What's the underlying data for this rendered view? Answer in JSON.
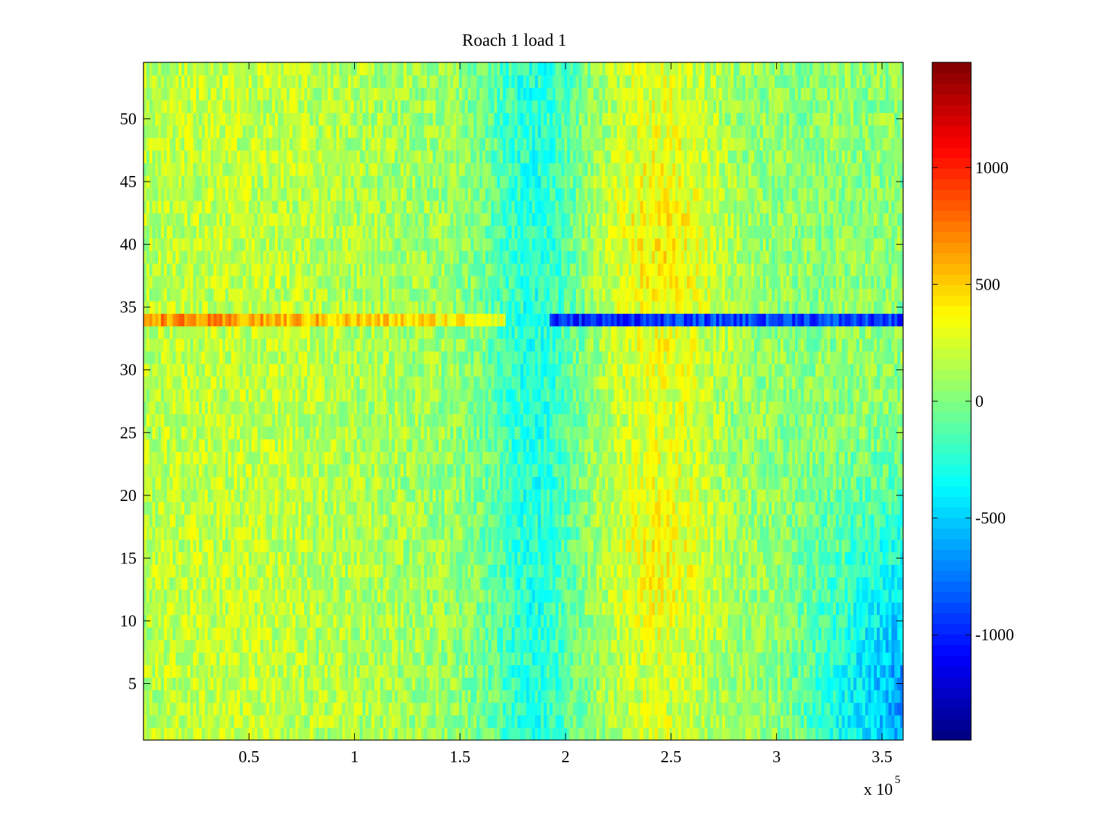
{
  "chart_data": {
    "type": "heatmap",
    "title": "Roach 1 load 1",
    "xlabel": "",
    "ylabel": "",
    "x_exponent_label": "x 10",
    "x_exponent_power": "5",
    "x_range": [
      0,
      360000
    ],
    "y_range": [
      0.5,
      54.5
    ],
    "rows": 54,
    "x_ticks": [
      {
        "value": 50000,
        "label": "0.5"
      },
      {
        "value": 100000,
        "label": "1"
      },
      {
        "value": 150000,
        "label": "1.5"
      },
      {
        "value": 200000,
        "label": "2"
      },
      {
        "value": 250000,
        "label": "2.5"
      },
      {
        "value": 300000,
        "label": "3"
      },
      {
        "value": 350000,
        "label": "3.5"
      }
    ],
    "y_ticks": [
      {
        "value": 5,
        "label": "5"
      },
      {
        "value": 10,
        "label": "10"
      },
      {
        "value": 15,
        "label": "15"
      },
      {
        "value": 20,
        "label": "20"
      },
      {
        "value": 25,
        "label": "25"
      },
      {
        "value": 30,
        "label": "30"
      },
      {
        "value": 35,
        "label": "35"
      },
      {
        "value": 40,
        "label": "40"
      },
      {
        "value": 45,
        "label": "45"
      },
      {
        "value": 50,
        "label": "50"
      }
    ],
    "colorbar": {
      "colormap": "jet",
      "range": [
        -1450,
        1450
      ],
      "ticks": [
        {
          "value": 1000,
          "label": "1000"
        },
        {
          "value": 500,
          "label": "500"
        },
        {
          "value": 0,
          "label": "0"
        },
        {
          "value": -500,
          "label": "-500"
        },
        {
          "value": -1000,
          "label": "-1000"
        }
      ]
    },
    "grid": false,
    "approximate_region_means": {
      "background": 0,
      "row_34_x_0_to_170000": 700,
      "row_34_x_195000_to_360000": -900,
      "x_225000_to_275000": 450,
      "x_320000_to_360000_rows_1_to_10": -850,
      "x_170000_to_200000": -350
    }
  }
}
